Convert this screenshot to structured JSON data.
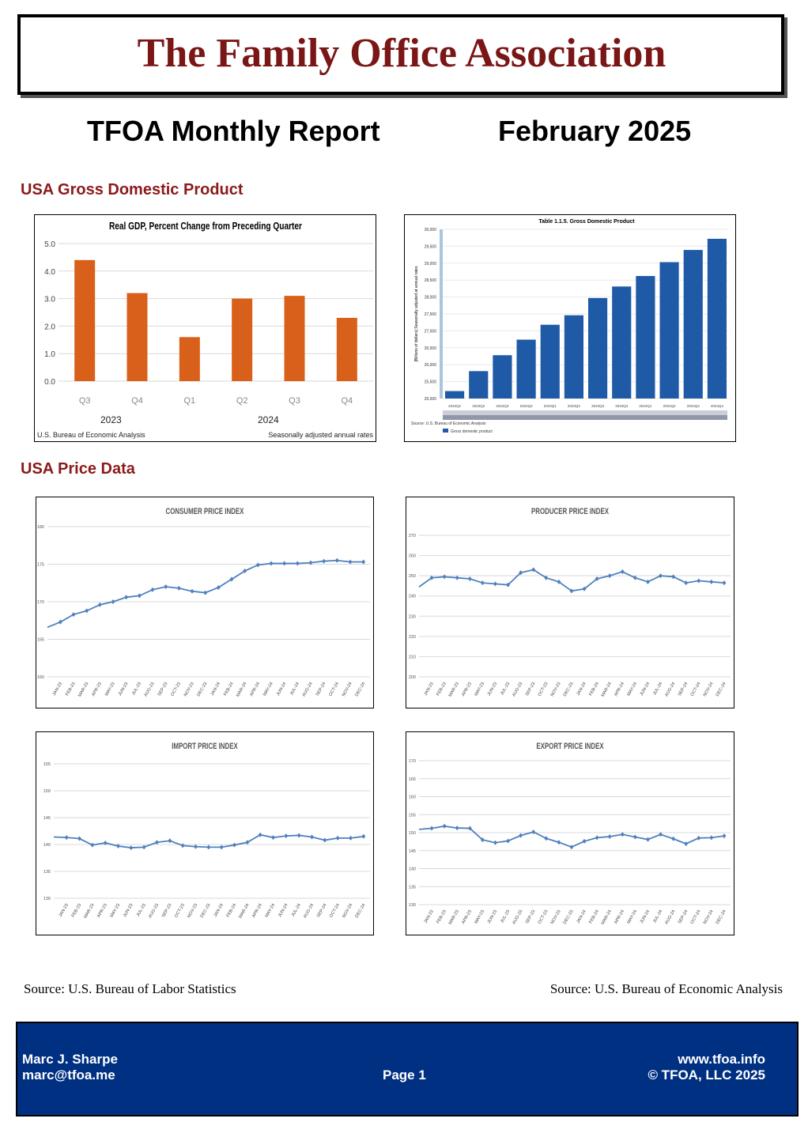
{
  "header": {
    "org_name": "The Family Office Association",
    "report_title": "TFOA Monthly Report",
    "report_date": "February 2025"
  },
  "sections": {
    "gdp": "USA Gross Domestic Product",
    "price": "USA Price Data"
  },
  "chart_data": [
    {
      "id": "gdp_pct",
      "type": "bar",
      "title": "Real GDP, Percent Change from Preceding Quarter",
      "categories": [
        "Q3",
        "Q4",
        "Q1",
        "Q2",
        "Q3",
        "Q4"
      ],
      "year_labels": [
        "2023",
        "2024"
      ],
      "values": [
        4.4,
        3.2,
        1.6,
        3.0,
        3.1,
        2.3
      ],
      "yticks": [
        "5.0",
        "4.0",
        "3.0",
        "2.0",
        "1.0",
        "0.0"
      ],
      "ylim": [
        0,
        5
      ],
      "source": "U.S. Bureau of Economic Analysis",
      "note": "Seasonally adjusted annual rates",
      "color": "#d9601a"
    },
    {
      "id": "gdp_level",
      "type": "bar",
      "title": "Table 1.1.5. Gross Domestic Product",
      "ylabel": "[Billions of dollars] Seasonally adjusted at annual rates",
      "categories": [
        "2022Q1",
        "2022Q2",
        "2022Q3",
        "2022Q4",
        "2023Q1",
        "2023Q2",
        "2023Q3",
        "2023Q4",
        "2024Q1",
        "2024Q2",
        "2024Q3",
        "2024Q4"
      ],
      "values": [
        25220,
        25810,
        26280,
        26740,
        27180,
        27460,
        27970,
        28310,
        28620,
        29030,
        29390,
        29720
      ],
      "yticks": [
        "30,000",
        "29,500",
        "29,000",
        "28,500",
        "28,000",
        "27,500",
        "27,000",
        "26,500",
        "26,000",
        "25,500",
        "25,000"
      ],
      "ylim": [
        25000,
        30000
      ],
      "source": "Source: U.S. Bureau of Economic Analysis",
      "legend": "Gross domestic product",
      "color": "#1f5aa6"
    },
    {
      "id": "cpi",
      "type": "line",
      "title": "CONSUMER PRICE INDEX",
      "categories": [
        "JAN-23",
        "FEB-23",
        "MAR-23",
        "APR-23",
        "MAY-23",
        "JUN-23",
        "JUL-23",
        "AUG-23",
        "SEP-23",
        "OCT-23",
        "NOV-23",
        "DEC-23",
        "JAN-24",
        "FEB-24",
        "MAR-24",
        "APR-24",
        "MAY-24",
        "JUN-24",
        "JUL-24",
        "AUG-24",
        "SEP-24",
        "OCT-24",
        "NOV-24",
        "DEC-24"
      ],
      "values": [
        167.3,
        168.3,
        168.8,
        169.6,
        170.0,
        170.6,
        170.8,
        171.6,
        172.0,
        171.8,
        171.4,
        171.2,
        171.9,
        173.0,
        174.1,
        174.9,
        175.1,
        175.1,
        175.1,
        175.2,
        175.4,
        175.5,
        175.3,
        175.3
      ],
      "start_value": 166.6,
      "yticks": [
        "180",
        "175",
        "170",
        "165",
        "160"
      ],
      "ylim": [
        160,
        180
      ],
      "color": "#4f81bd"
    },
    {
      "id": "ppi",
      "type": "line",
      "title": "PRODUCER PRICE INDEX",
      "categories": [
        "JAN-23",
        "FEB-23",
        "MAR-23",
        "APR-23",
        "MAY-23",
        "JUN-23",
        "JUL-23",
        "AUG-23",
        "SEP-23",
        "OCT-23",
        "NOV-23",
        "DEC-23",
        "JAN-24",
        "FEB-24",
        "MAR-24",
        "APR-24",
        "MAY-24",
        "JUN-24",
        "JUL-24",
        "AUG-24",
        "SEP-24",
        "OCT-24",
        "NOV-24",
        "DEC-24"
      ],
      "values": [
        249,
        249.5,
        249,
        248.5,
        246.5,
        246,
        245.5,
        251.5,
        253,
        249,
        247,
        242.5,
        243.5,
        248.5,
        250,
        252,
        249,
        247,
        250,
        249.5,
        246.5,
        247.5,
        247,
        246.5
      ],
      "start_value": 244.5,
      "yticks": [
        "270",
        "260",
        "250",
        "240",
        "230",
        "220",
        "210",
        "200"
      ],
      "ylim": [
        200,
        270
      ],
      "color": "#4f81bd"
    },
    {
      "id": "import",
      "type": "line",
      "title": "IMPORT PRICE INDEX",
      "categories": [
        "JAN-23",
        "FEB-23",
        "MAR-23",
        "APR-23",
        "MAY-23",
        "JUN-23",
        "JUL-23",
        "AUG-23",
        "SEP-23",
        "OCT-23",
        "NOV-23",
        "DEC-23",
        "JAN-24",
        "FEB-24",
        "MAR-24",
        "APR-24",
        "MAY-24",
        "JUN-24",
        "JUL-24",
        "AUG-24",
        "SEP-24",
        "OCT-24",
        "NOV-24",
        "DEC-24"
      ],
      "values": [
        141.3,
        141.1,
        139.9,
        140.3,
        139.7,
        139.4,
        139.5,
        140.4,
        140.7,
        139.8,
        139.6,
        139.5,
        139.5,
        139.9,
        140.4,
        141.8,
        141.3,
        141.6,
        141.7,
        141.4,
        140.8,
        141.2,
        141.2,
        141.5
      ],
      "start_value": 141.4,
      "yticks": [
        "155",
        "150",
        "145",
        "140",
        "135",
        "130"
      ],
      "ylim": [
        130,
        155
      ],
      "color": "#4f81bd"
    },
    {
      "id": "export",
      "type": "line",
      "title": "EXPORT PRICE INDEX",
      "categories": [
        "JAN-23",
        "FEB-23",
        "MAR-23",
        "APR-23",
        "MAY-23",
        "JUN-23",
        "JUL-23",
        "AUG-23",
        "SEP-23",
        "OCT-23",
        "NOV-23",
        "DEC-23",
        "JAN-24",
        "FEB-24",
        "MAR-24",
        "APR-24",
        "MAY-24",
        "JUN-24",
        "JUL-24",
        "AUG-24",
        "SEP-24",
        "OCT-24",
        "NOV-24",
        "DEC-24"
      ],
      "values": [
        151.2,
        151.8,
        151.3,
        151.2,
        148.0,
        147.2,
        147.7,
        149.2,
        150.2,
        148.4,
        147.3,
        146.0,
        147.6,
        148.6,
        148.9,
        149.5,
        148.8,
        148.1,
        149.5,
        148.3,
        146.9,
        148.5,
        148.6,
        149.1
      ],
      "start_value": 150.9,
      "yticks": [
        "170",
        "165",
        "160",
        "155",
        "150",
        "145",
        "140",
        "135",
        "130"
      ],
      "ylim": [
        130,
        170
      ],
      "color": "#4f81bd"
    }
  ],
  "sources": {
    "left": "Source: U.S. Bureau of Labor Statistics",
    "right": "Source: U.S. Bureau of Economic Analysis"
  },
  "footer": {
    "author": "Marc J. Sharpe",
    "email": "marc@tfoa.me",
    "page": "Page 1",
    "website": "www.tfoa.info",
    "copyright": "© TFOA, LLC 2025"
  }
}
